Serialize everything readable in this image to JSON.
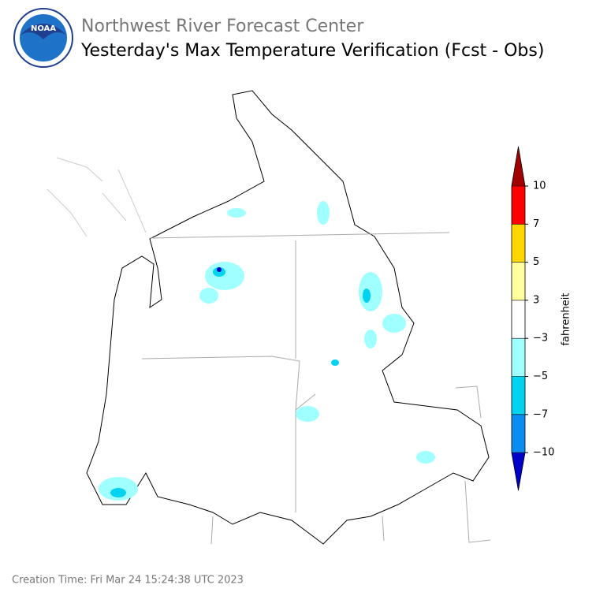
{
  "header": {
    "logo_text": "NOAA",
    "title": "Northwest River Forecast Center",
    "subtitle": "Yesterday's Max Temperature Verification (Fcst - Obs)"
  },
  "colorbar": {
    "label": "fahrenheit",
    "ticks": [
      10,
      7,
      5,
      3,
      {
        "value": -3,
        "label": "−3"
      },
      {
        "value": -5,
        "label": "−5"
      },
      {
        "value": -7,
        "label": "−7"
      },
      {
        "value": -10,
        "label": "−10"
      }
    ],
    "colors": [
      "#a00000",
      "#ff0000",
      "#ffd700",
      "#ffffa0",
      "#ffffff",
      "#a0ffff",
      "#00d2f0",
      "#0a8cf0",
      "#0000c8"
    ]
  },
  "footer": {
    "creation_time": "Creation Time: Fri Mar 24 15:24:38 UTC 2023"
  }
}
